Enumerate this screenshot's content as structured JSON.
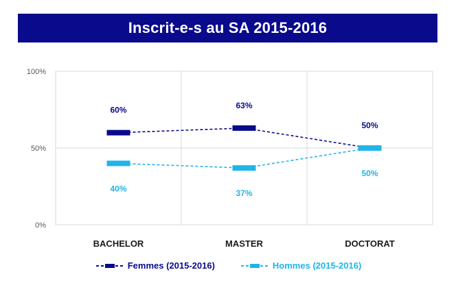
{
  "chart_data": {
    "type": "line",
    "title": "Inscrit-e-s au SA 2015-2016",
    "categories": [
      "BACHELOR",
      "MASTER",
      "DOCTORAT"
    ],
    "ylim": [
      0,
      100
    ],
    "yticks": [
      0,
      50,
      100
    ],
    "ytick_labels": [
      "0%",
      "50%",
      "100%"
    ],
    "grid": true,
    "legend_position": "bottom",
    "series": [
      {
        "name": "Femmes (2015-2016)",
        "values": [
          60,
          63,
          50
        ],
        "labels": [
          "60%",
          "63%",
          "50%"
        ],
        "color": "#0a0a8c",
        "style": "dashed"
      },
      {
        "name": "Hommes (2015-2016)",
        "values": [
          40,
          37,
          50
        ],
        "labels": [
          "40%",
          "37%",
          "50%"
        ],
        "color": "#1fb5e8",
        "style": "dashed"
      }
    ]
  }
}
